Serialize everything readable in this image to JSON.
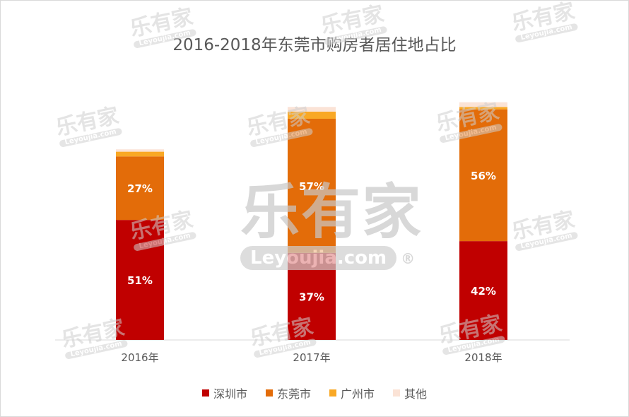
{
  "chart_data": {
    "type": "bar",
    "stacked": true,
    "title": "2016-2018年东莞市购房者居住地占比",
    "categories": [
      "2016年",
      "2017年",
      "2018年"
    ],
    "ylim": [
      0,
      100
    ],
    "grid": false,
    "legend_position": "bottom",
    "series": [
      {
        "name": "深圳市",
        "values": [
          51,
          37,
          42
        ],
        "color": "#c00000",
        "labels": [
          "51%",
          "37%",
          "42%"
        ]
      },
      {
        "name": "东莞市",
        "values": [
          27,
          57,
          56
        ],
        "color": "#e36c09",
        "labels": [
          "27%",
          "57%",
          "56%"
        ]
      },
      {
        "name": "广州市",
        "values": [
          2,
          3,
          1
        ],
        "color": "#f9a825"
      },
      {
        "name": "其他",
        "values": [
          1,
          2,
          2
        ],
        "color": "#fbe3d6"
      }
    ]
  },
  "watermark": {
    "brand": "乐有家",
    "site": "Leyoujia.com",
    "reg": "®"
  }
}
